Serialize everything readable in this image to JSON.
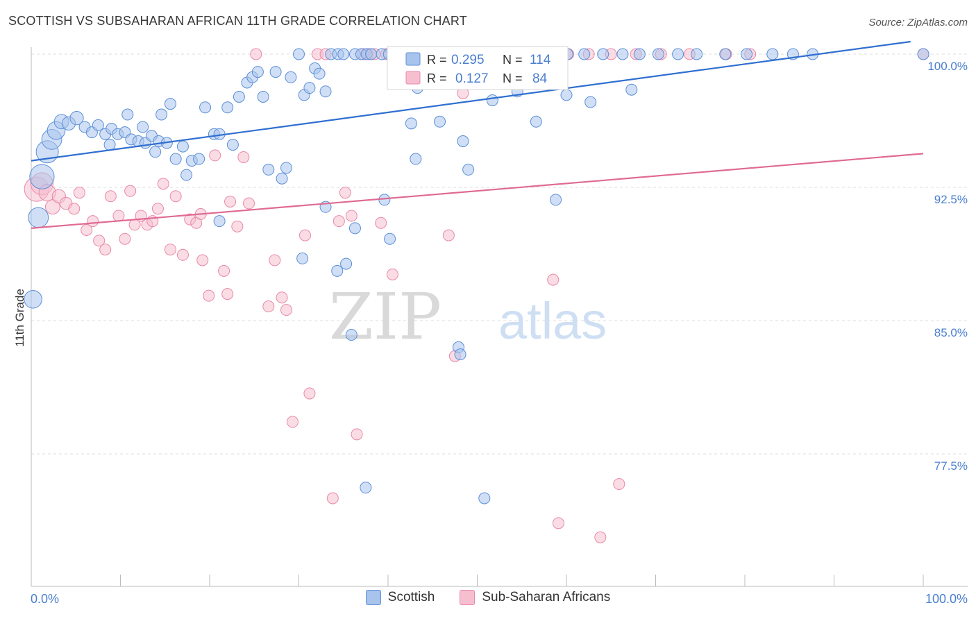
{
  "title": "SCOTTISH VS SUBSAHARAN AFRICAN 11TH GRADE CORRELATION CHART",
  "source": "Source: ZipAtlas.com",
  "watermark": {
    "zip": "ZIP",
    "atlas": "atlas"
  },
  "colors": {
    "blue_fill": "#a9c4ec",
    "blue_stroke": "#5b8fd8",
    "blue_line": "#2f6fd0",
    "pink_fill": "#f6bfd0",
    "pink_stroke": "#e889a8",
    "pink_line": "#e06a93",
    "axis_text": "#4a7fd0",
    "grid": "#dcdcdc"
  },
  "legend_bottom": [
    {
      "label": "Scottish",
      "series": "blue"
    },
    {
      "label": "Sub-Saharan Africans",
      "series": "pink"
    }
  ],
  "stats": [
    {
      "r_label": "R =",
      "r": "0.295",
      "n_label": "N =",
      "n": "114"
    },
    {
      "r_label": "R =",
      "r": "0.127",
      "n_label": "N =",
      "n": "84"
    }
  ],
  "chart_data": {
    "type": "scatter",
    "title": "SCOTTISH VS SUBSAHARAN AFRICAN 11TH GRADE CORRELATION CHART",
    "xlabel": "",
    "ylabel": "11th Grade",
    "xlim": [
      0,
      100
    ],
    "ylim": [
      70.8,
      101.0
    ],
    "x_tick_labels": [
      "0.0%",
      "100.0%"
    ],
    "y_ticks": [
      {
        "value": 100.0,
        "label": "100.0%"
      },
      {
        "value": 92.5,
        "label": "92.5%"
      },
      {
        "value": 85.0,
        "label": "85.0%"
      },
      {
        "value": 77.5,
        "label": "77.5%"
      }
    ],
    "grid": "horizontal dashed",
    "series": [
      {
        "name": "Scottish",
        "color": "#a9c4ec",
        "trend": {
          "x0": 0,
          "y0": 94.0,
          "x1": 100,
          "y1": 100.8
        },
        "points": [
          [
            1.2,
            93.1,
            2.2
          ],
          [
            1.8,
            94.5,
            2
          ],
          [
            2.3,
            95.2,
            1.8
          ],
          [
            2.8,
            95.7,
            1.6
          ],
          [
            3.4,
            96.2,
            1.3
          ],
          [
            4.2,
            96.1,
            1.2
          ],
          [
            5.1,
            96.4,
            1.2
          ],
          [
            6.0,
            95.9,
            1
          ],
          [
            6.8,
            95.6,
            1
          ],
          [
            7.5,
            96.0,
            1
          ],
          [
            8.3,
            95.5,
            1
          ],
          [
            9.0,
            95.8,
            1
          ],
          [
            9.7,
            95.5,
            1
          ],
          [
            10.5,
            95.6,
            1
          ],
          [
            11.2,
            95.2,
            1
          ],
          [
            12.0,
            95.1,
            1
          ],
          [
            12.8,
            95.0,
            1
          ],
          [
            13.5,
            95.4,
            1
          ],
          [
            14.3,
            95.1,
            1
          ],
          [
            15.2,
            95.0,
            1
          ],
          [
            8.8,
            94.9,
            1
          ],
          [
            10.8,
            96.6,
            1
          ],
          [
            12.5,
            95.9,
            1
          ],
          [
            13.9,
            94.5,
            1
          ],
          [
            14.6,
            96.6,
            1
          ],
          [
            15.6,
            97.2,
            1
          ],
          [
            16.2,
            94.1,
            1
          ],
          [
            17.0,
            94.8,
            1
          ],
          [
            17.4,
            93.2,
            1
          ],
          [
            18.0,
            94.0,
            1
          ],
          [
            18.8,
            94.1,
            1
          ],
          [
            19.5,
            97.0,
            1
          ],
          [
            20.5,
            95.5,
            1
          ],
          [
            21.1,
            95.5,
            1
          ],
          [
            22.0,
            97.0,
            1
          ],
          [
            22.6,
            94.9,
            1
          ],
          [
            23.3,
            97.6,
            1
          ],
          [
            24.2,
            98.4,
            1
          ],
          [
            24.8,
            98.7,
            1
          ],
          [
            25.4,
            99.0,
            1
          ],
          [
            26.0,
            97.6,
            1
          ],
          [
            26.6,
            93.5,
            1
          ],
          [
            27.4,
            99.0,
            1
          ],
          [
            28.1,
            93.0,
            1
          ],
          [
            28.6,
            93.6,
            1
          ],
          [
            29.1,
            98.7,
            1
          ],
          [
            30.0,
            100.0,
            1
          ],
          [
            30.6,
            97.7,
            1
          ],
          [
            31.2,
            98.1,
            1
          ],
          [
            31.8,
            99.2,
            1
          ],
          [
            32.3,
            98.9,
            1
          ],
          [
            33.0,
            97.9,
            1
          ],
          [
            33.6,
            100.0,
            1
          ],
          [
            34.4,
            100.0,
            1
          ],
          [
            35.0,
            100.0,
            1
          ],
          [
            36.3,
            100.0,
            1
          ],
          [
            37.0,
            100.0,
            1
          ],
          [
            37.6,
            100.0,
            1
          ],
          [
            38.1,
            100.0,
            1
          ],
          [
            39.3,
            100.0,
            1
          ],
          [
            40.1,
            100.0,
            1
          ],
          [
            41.0,
            100.0,
            1
          ],
          [
            42.1,
            100.0,
            1
          ],
          [
            43.2,
            100.0,
            1
          ],
          [
            44.3,
            100.0,
            1
          ],
          [
            45.4,
            100.0,
            1
          ],
          [
            46.4,
            100.0,
            1
          ],
          [
            47.6,
            100.0,
            1
          ],
          [
            48.7,
            100.0,
            1
          ],
          [
            50.0,
            100.0,
            1
          ],
          [
            51.2,
            100.0,
            1
          ],
          [
            52.4,
            100.0,
            1
          ],
          [
            53.6,
            100.0,
            1
          ],
          [
            55.0,
            100.0,
            1
          ],
          [
            56.7,
            100.0,
            1
          ],
          [
            58.3,
            100.0,
            1
          ],
          [
            60.1,
            100.0,
            1
          ],
          [
            62.0,
            100.0,
            1
          ],
          [
            64.1,
            100.0,
            1
          ],
          [
            66.3,
            100.0,
            1
          ],
          [
            68.2,
            100.0,
            1
          ],
          [
            70.3,
            100.0,
            1
          ],
          [
            72.5,
            100.0,
            1
          ],
          [
            74.6,
            100.0,
            1
          ],
          [
            77.8,
            100.0,
            1
          ],
          [
            80.2,
            100.0,
            1
          ],
          [
            83.1,
            100.0,
            1
          ],
          [
            85.4,
            100.0,
            1
          ],
          [
            87.6,
            100.0,
            1
          ],
          [
            100.0,
            100.0,
            1
          ],
          [
            43.3,
            98.1,
            1
          ],
          [
            42.6,
            96.1,
            1
          ],
          [
            45.8,
            96.2,
            1
          ],
          [
            48.4,
            95.1,
            1
          ],
          [
            51.7,
            97.4,
            1
          ],
          [
            54.5,
            97.9,
            1
          ],
          [
            56.6,
            96.2,
            1
          ],
          [
            60.0,
            97.7,
            1
          ],
          [
            62.7,
            97.3,
            1
          ],
          [
            67.3,
            98.0,
            1
          ],
          [
            33.0,
            91.4,
            1
          ],
          [
            36.3,
            90.2,
            1
          ],
          [
            40.2,
            89.6,
            1
          ],
          [
            34.3,
            87.8,
            1
          ],
          [
            35.3,
            88.2,
            1
          ],
          [
            39.6,
            91.8,
            1
          ],
          [
            35.9,
            84.2,
            1
          ],
          [
            47.9,
            83.5,
            1
          ],
          [
            48.1,
            83.1,
            1
          ],
          [
            21.1,
            90.6,
            1
          ],
          [
            30.4,
            88.5,
            1
          ],
          [
            43.1,
            94.1,
            1
          ],
          [
            49.0,
            93.5,
            1
          ],
          [
            58.8,
            91.8,
            1
          ],
          [
            37.5,
            75.6,
            1
          ],
          [
            50.8,
            75.0,
            1
          ],
          [
            0.2,
            86.2,
            1.6
          ],
          [
            0.8,
            90.8,
            1.8
          ]
        ]
      },
      {
        "name": "Sub-Saharan Africans",
        "color": "#f6bfd0",
        "trend": {
          "x0": 0,
          "y0": 90.2,
          "x1": 100,
          "y1": 94.4
        },
        "points": [
          [
            0.6,
            92.4,
            2.2
          ],
          [
            1.2,
            92.7,
            2
          ],
          [
            1.8,
            92.2,
            1.5
          ],
          [
            2.4,
            91.4,
            1.3
          ],
          [
            3.1,
            92.0,
            1.2
          ],
          [
            3.9,
            91.6,
            1.1
          ],
          [
            4.8,
            91.3,
            1
          ],
          [
            5.4,
            92.2,
            1
          ],
          [
            6.2,
            90.1,
            1
          ],
          [
            6.9,
            90.6,
            1
          ],
          [
            7.6,
            89.5,
            1
          ],
          [
            8.3,
            89.0,
            1
          ],
          [
            8.9,
            92.0,
            1
          ],
          [
            9.8,
            90.9,
            1
          ],
          [
            10.5,
            89.6,
            1
          ],
          [
            11.1,
            92.3,
            1
          ],
          [
            11.6,
            90.4,
            1
          ],
          [
            12.3,
            90.9,
            1
          ],
          [
            13.0,
            90.4,
            1
          ],
          [
            13.6,
            90.6,
            1
          ],
          [
            14.2,
            91.3,
            1
          ],
          [
            14.8,
            92.7,
            1
          ],
          [
            15.6,
            89.0,
            1
          ],
          [
            16.2,
            92.0,
            1
          ],
          [
            17.0,
            88.7,
            1
          ],
          [
            17.8,
            90.7,
            1
          ],
          [
            18.5,
            90.5,
            1
          ],
          [
            19.2,
            88.4,
            1
          ],
          [
            19.9,
            86.4,
            1
          ],
          [
            20.6,
            94.3,
            1
          ],
          [
            21.6,
            87.8,
            1
          ],
          [
            22.3,
            91.7,
            1
          ],
          [
            23.1,
            90.3,
            1
          ],
          [
            23.8,
            94.2,
            1
          ],
          [
            24.4,
            91.6,
            1
          ],
          [
            25.2,
            100.0,
            1
          ],
          [
            26.6,
            85.8,
            1
          ],
          [
            27.3,
            88.4,
            1
          ],
          [
            28.1,
            86.3,
            1
          ],
          [
            28.6,
            85.6,
            1
          ],
          [
            29.3,
            79.3,
            1
          ],
          [
            30.7,
            89.8,
            1
          ],
          [
            31.2,
            80.9,
            1
          ],
          [
            32.1,
            100.0,
            1
          ],
          [
            33.0,
            100.0,
            1
          ],
          [
            33.8,
            75.0,
            1
          ],
          [
            34.5,
            90.6,
            1
          ],
          [
            35.2,
            92.2,
            1
          ],
          [
            35.9,
            90.9,
            1
          ],
          [
            36.5,
            78.6,
            1
          ],
          [
            37.2,
            100.0,
            1
          ],
          [
            37.8,
            100.0,
            1
          ],
          [
            38.5,
            100.0,
            1
          ],
          [
            39.2,
            90.5,
            1
          ],
          [
            39.8,
            100.0,
            1
          ],
          [
            40.5,
            87.6,
            1
          ],
          [
            41.2,
            100.0,
            1
          ],
          [
            42.1,
            100.0,
            1
          ],
          [
            43.0,
            100.0,
            1
          ],
          [
            44.2,
            100.0,
            1
          ],
          [
            45.6,
            100.0,
            1
          ],
          [
            46.8,
            89.8,
            1
          ],
          [
            47.5,
            83.0,
            1
          ],
          [
            48.4,
            97.8,
            1
          ],
          [
            49.8,
            100.0,
            1
          ],
          [
            51.4,
            100.0,
            1
          ],
          [
            53.1,
            100.0,
            1
          ],
          [
            55.0,
            100.0,
            1
          ],
          [
            57.1,
            98.7,
            1
          ],
          [
            58.5,
            87.3,
            1
          ],
          [
            60.2,
            100.0,
            1
          ],
          [
            62.5,
            100.0,
            1
          ],
          [
            65.0,
            100.0,
            1
          ],
          [
            67.8,
            100.0,
            1
          ],
          [
            70.6,
            100.0,
            1
          ],
          [
            73.8,
            100.0,
            1
          ],
          [
            77.9,
            100.0,
            1
          ],
          [
            80.6,
            100.0,
            1
          ],
          [
            59.1,
            73.6,
            1
          ],
          [
            63.8,
            72.8,
            1
          ],
          [
            65.9,
            75.8,
            1
          ],
          [
            19.0,
            91.0,
            1
          ],
          [
            22.0,
            86.5,
            1
          ],
          [
            100.0,
            100.0,
            1
          ]
        ]
      }
    ]
  }
}
